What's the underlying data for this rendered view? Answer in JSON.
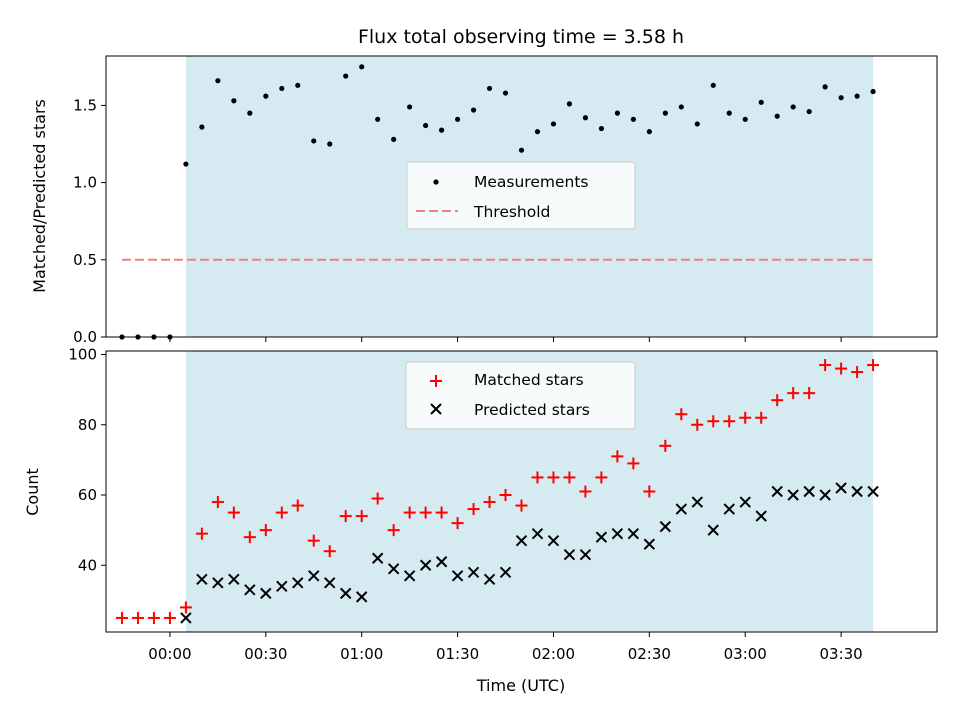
{
  "chart_data": [
    {
      "type": "scatter",
      "title": "Flux total observing time = 3.58 h",
      "xlabel": "",
      "ylabel": "Matched/Predicted stars",
      "ylim": [
        0,
        1.82
      ],
      "yticks": [
        0.0,
        0.5,
        1.0,
        1.5
      ],
      "ytick_labels": [
        "0.0",
        "0.5",
        "1.0",
        "1.5"
      ],
      "x_unit": "minutes from 00:00 UTC",
      "xlim": [
        -20,
        240
      ],
      "observing_window_min": [
        5,
        220
      ],
      "legend": [
        "Measurements",
        "Threshold"
      ],
      "threshold": {
        "value": 0.5,
        "x": [
          -15,
          220
        ]
      },
      "series": [
        {
          "name": "Measurements",
          "x": [
            -15,
            -10,
            -5,
            0,
            5,
            10,
            15,
            20,
            25,
            30,
            35,
            40,
            45,
            50,
            55,
            60,
            65,
            70,
            75,
            80,
            85,
            90,
            95,
            100,
            105,
            110,
            115,
            120,
            125,
            130,
            135,
            140,
            145,
            150,
            155,
            160,
            165,
            170,
            175,
            180,
            185,
            190,
            195,
            200,
            205,
            210,
            215,
            220
          ],
          "values": [
            0.0,
            0.0,
            0.0,
            0.0,
            1.12,
            1.36,
            1.66,
            1.53,
            1.45,
            1.56,
            1.61,
            1.63,
            1.27,
            1.25,
            1.69,
            1.75,
            1.41,
            1.28,
            1.49,
            1.37,
            1.34,
            1.41,
            1.47,
            1.61,
            1.58,
            1.21,
            1.33,
            1.38,
            1.51,
            1.42,
            1.35,
            1.45,
            1.41,
            1.33,
            1.45,
            1.49,
            1.38,
            1.63,
            1.45,
            1.41,
            1.52,
            1.43,
            1.49,
            1.46,
            1.62,
            1.55,
            1.56,
            1.59
          ]
        }
      ]
    },
    {
      "type": "scatter",
      "title": "",
      "xlabel": "Time (UTC)",
      "ylabel": "Count",
      "ylim": [
        21,
        101
      ],
      "yticks": [
        40,
        60,
        80,
        100
      ],
      "ytick_labels": [
        "40",
        "60",
        "80",
        "100"
      ],
      "xticks": [
        0,
        30,
        60,
        90,
        120,
        150,
        180,
        210
      ],
      "xtick_labels": [
        "00:00",
        "00:30",
        "01:00",
        "01:30",
        "02:00",
        "02:30",
        "03:00",
        "03:30"
      ],
      "x_unit": "minutes from 00:00 UTC",
      "xlim": [
        -20,
        240
      ],
      "observing_window_min": [
        5,
        220
      ],
      "legend": [
        "Matched stars",
        "Predicted stars"
      ],
      "x": [
        -15,
        -10,
        -5,
        0,
        5,
        10,
        15,
        20,
        25,
        30,
        35,
        40,
        45,
        50,
        55,
        60,
        65,
        70,
        75,
        80,
        85,
        90,
        95,
        100,
        105,
        110,
        115,
        120,
        125,
        130,
        135,
        140,
        145,
        150,
        155,
        160,
        165,
        170,
        175,
        180,
        185,
        190,
        195,
        200,
        205,
        210,
        215,
        220
      ],
      "series": [
        {
          "name": "Matched stars",
          "values": [
            25,
            25,
            25,
            25,
            28,
            49,
            58,
            55,
            48,
            50,
            55,
            57,
            47,
            44,
            54,
            54,
            59,
            50,
            55,
            55,
            55,
            52,
            56,
            58,
            60,
            57,
            65,
            65,
            65,
            61,
            65,
            71,
            69,
            61,
            74,
            83,
            80,
            81,
            81,
            82,
            82,
            87,
            89,
            89,
            97,
            96,
            95,
            97
          ]
        },
        {
          "name": "Predicted stars",
          "values": [
            null,
            null,
            null,
            null,
            25,
            36,
            35,
            36,
            33,
            32,
            34,
            35,
            37,
            35,
            32,
            31,
            42,
            39,
            37,
            40,
            41,
            37,
            38,
            36,
            38,
            47,
            49,
            47,
            43,
            43,
            48,
            49,
            49,
            46,
            51,
            56,
            58,
            50,
            56,
            58,
            54,
            61,
            60,
            61,
            60,
            62,
            61,
            61
          ]
        }
      ]
    }
  ],
  "colors": {
    "window": "#d5ebf1",
    "threshold": "#f08080",
    "matched": "#ff0000",
    "predicted": "#000000",
    "measurements": "#000000"
  }
}
